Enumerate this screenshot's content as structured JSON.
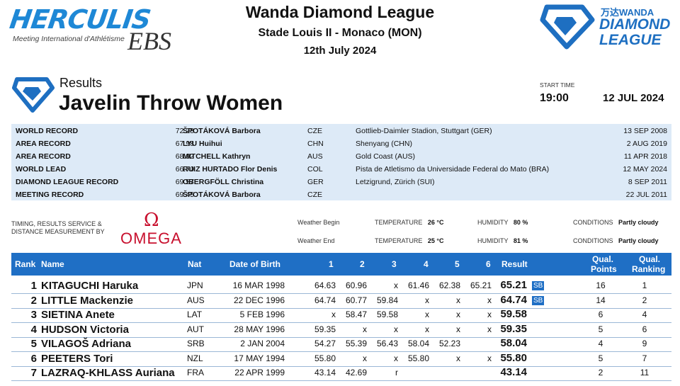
{
  "header": {
    "brand": "HERCULIS",
    "brand_sub": "Meeting International d'Athlétisme",
    "brand_ebs": "EBS",
    "title": "Wanda Diamond League",
    "venue": "Stade Louis II - Monaco (MON)",
    "date": "12th July 2024",
    "dl_wanda": "万达WANDA",
    "dl_name_1": "DIAMOND",
    "dl_name_2": "LEAGUE"
  },
  "event": {
    "section": "Results",
    "name": "Javelin Throw Women",
    "start_label": "START TIME",
    "start_time": "19:00",
    "start_date": "12 JUL 2024"
  },
  "records": [
    {
      "label": "WORLD RECORD",
      "value": "72.28",
      "name": "ŠPOTÁKOVÁ Barbora",
      "nat": "CZE",
      "venue": "Gottlieb-Daimler Stadion, Stuttgart (GER)",
      "date": "13 SEP 2008"
    },
    {
      "label": "AREA RECORD",
      "value": "67.98",
      "name": "LYU Huihui",
      "nat": "CHN",
      "venue": "Shenyang (CHN)",
      "date": "2 AUG 2019"
    },
    {
      "label": "AREA RECORD",
      "value": "68.92",
      "name": "MITCHELL Kathryn",
      "nat": "AUS",
      "venue": "Gold Coast (AUS)",
      "date": "11 APR 2018"
    },
    {
      "label": "WORLD LEAD",
      "value": "66.70",
      "name": "RUIZ HURTADO Flor Denis",
      "nat": "COL",
      "venue": "Pista de Atletismo da Universidade Federal do Mato (BRA)",
      "date": "12 MAY 2024"
    },
    {
      "label": "DIAMOND LEAGUE RECORD",
      "value": "69.57",
      "name": "OBERGFÖLL Christina",
      "nat": "GER",
      "venue": "Letzigrund, Zürich (SUI)",
      "date": "8 SEP 2011"
    },
    {
      "label": "MEETING RECORD",
      "value": "69.45",
      "name": "ŠPOTÁKOVÁ Barbora",
      "nat": "CZE",
      "venue": "",
      "date": "22 JUL 2011"
    }
  ],
  "timing": {
    "line1": "TIMING, RESULTS SERVICE &",
    "line2": "DISTANCE MEASUREMENT BY",
    "omega_symbol": "Ω",
    "omega": "OMEGA"
  },
  "weather": {
    "begin_label": "Weather Begin",
    "end_label": "Weather End",
    "temp_label": "TEMPERATURE",
    "humidity_label": "HUMIDITY",
    "conditions_label": "CONDITIONS",
    "begin_temp": "26 °C",
    "end_temp": "25 °C",
    "begin_humidity": "80 %",
    "end_humidity": "81 %",
    "begin_conditions": "Partly cloudy",
    "end_conditions": "Partly cloudy"
  },
  "table": {
    "headers": {
      "rank": "Rank",
      "name": "Name",
      "nat": "Nat",
      "dob": "Date of Birth",
      "a1": "1",
      "a2": "2",
      "a3": "3",
      "a4": "4",
      "a5": "5",
      "a6": "6",
      "result": "Result",
      "pts_1": "Qual.",
      "pts_2": "Points",
      "rnk_1": "Qual.",
      "rnk_2": "Ranking"
    },
    "rows": [
      {
        "rank": "1",
        "name": "KITAGUCHI Haruka",
        "nat": "JPN",
        "dob": "16 MAR 1998",
        "a1": "64.63",
        "a2": "60.96",
        "a3": "x",
        "a4": "61.46",
        "a5": "62.38",
        "a6": "65.21",
        "result": "65.21",
        "note": "SB",
        "pts": "16",
        "rnk": "1"
      },
      {
        "rank": "2",
        "name": "LITTLE Mackenzie",
        "nat": "AUS",
        "dob": "22 DEC 1996",
        "a1": "64.74",
        "a2": "60.77",
        "a3": "59.84",
        "a4": "x",
        "a5": "x",
        "a6": "x",
        "result": "64.74",
        "note": "SB",
        "pts": "14",
        "rnk": "2"
      },
      {
        "rank": "3",
        "name": "SIETINA Anete",
        "nat": "LAT",
        "dob": "5 FEB 1996",
        "a1": "x",
        "a2": "58.47",
        "a3": "59.58",
        "a4": "x",
        "a5": "x",
        "a6": "x",
        "result": "59.58",
        "note": "",
        "pts": "6",
        "rnk": "4"
      },
      {
        "rank": "4",
        "name": "HUDSON Victoria",
        "nat": "AUT",
        "dob": "28 MAY 1996",
        "a1": "59.35",
        "a2": "x",
        "a3": "x",
        "a4": "x",
        "a5": "x",
        "a6": "x",
        "result": "59.35",
        "note": "",
        "pts": "5",
        "rnk": "6"
      },
      {
        "rank": "5",
        "name": "VILAGOŠ Adriana",
        "nat": "SRB",
        "dob": "2 JAN 2004",
        "a1": "54.27",
        "a2": "55.39",
        "a3": "56.43",
        "a4": "58.04",
        "a5": "52.23",
        "a6": "",
        "result": "58.04",
        "note": "",
        "pts": "4",
        "rnk": "9"
      },
      {
        "rank": "6",
        "name": "PEETERS Tori",
        "nat": "NZL",
        "dob": "17 MAY 1994",
        "a1": "55.80",
        "a2": "x",
        "a3": "x",
        "a4": "55.80",
        "a5": "x",
        "a6": "x",
        "result": "55.80",
        "note": "",
        "pts": "5",
        "rnk": "7"
      },
      {
        "rank": "7",
        "name": "LAZRAQ-KHLASS Auriana",
        "nat": "FRA",
        "dob": "22 APR 1999",
        "a1": "43.14",
        "a2": "42.69",
        "a3": "r",
        "a4": "",
        "a5": "",
        "a6": "",
        "result": "43.14",
        "note": "",
        "pts": "2",
        "rnk": "11"
      }
    ]
  }
}
